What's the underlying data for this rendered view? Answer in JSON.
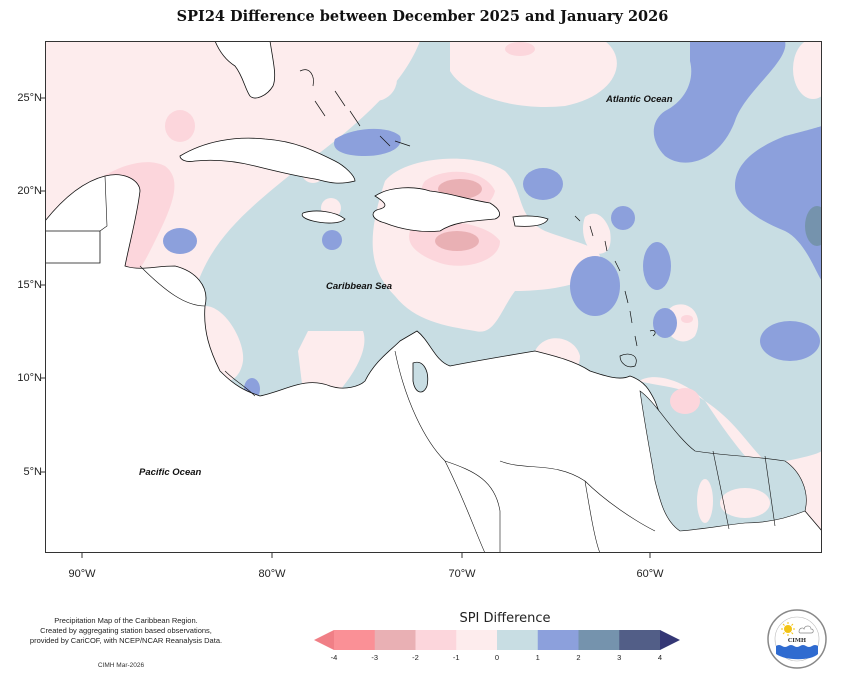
{
  "title": "SPI24 Difference between December 2025 and January 2026",
  "map": {
    "y_axis_labels": [
      "25°N",
      "20°N",
      "15°N",
      "10°N",
      "5°N"
    ],
    "x_axis_labels": [
      "90°W",
      "80°W",
      "70°W",
      "60°W"
    ],
    "lat_range": [
      2,
      28
    ],
    "lon_range": [
      -92.5,
      -52.5
    ],
    "ocean_labels": {
      "atlantic": "Atlantic Ocean",
      "caribbean": "Caribbean Sea",
      "pacific": "Pacific Ocean"
    }
  },
  "legend": {
    "title": "SPI Difference",
    "ticks": [
      "-4",
      "-3",
      "-2",
      "-1",
      "0",
      "1",
      "2",
      "3",
      "4"
    ],
    "bins": [
      {
        "range": "< -4",
        "color": "#f07f86"
      },
      {
        "range": "-4 to -3",
        "color": "#fa9096"
      },
      {
        "range": "-3 to -2",
        "color": "#e9b0b4"
      },
      {
        "range": "-2 to -1",
        "color": "#fcd6dc"
      },
      {
        "range": "-1 to 0",
        "color": "#fdeced"
      },
      {
        "range": "0 to 1",
        "color": "#c8dde3"
      },
      {
        "range": "1 to 2",
        "color": "#8ca0dc"
      },
      {
        "range": "2 to 3",
        "color": "#7593ad"
      },
      {
        "range": "3 to 4",
        "color": "#525e87"
      },
      {
        "range": "> 4",
        "color": "#343775"
      }
    ]
  },
  "credits": {
    "line1": "Precipitation Map of the Caribbean Region.",
    "line2": "Created by aggregating station based observations,",
    "line3": "provided by CariCOF, with NCEP/NCAR Reanalysis Data.",
    "stamp": "CIMH Mar-2026"
  },
  "logo": {
    "text": "CIMH"
  }
}
